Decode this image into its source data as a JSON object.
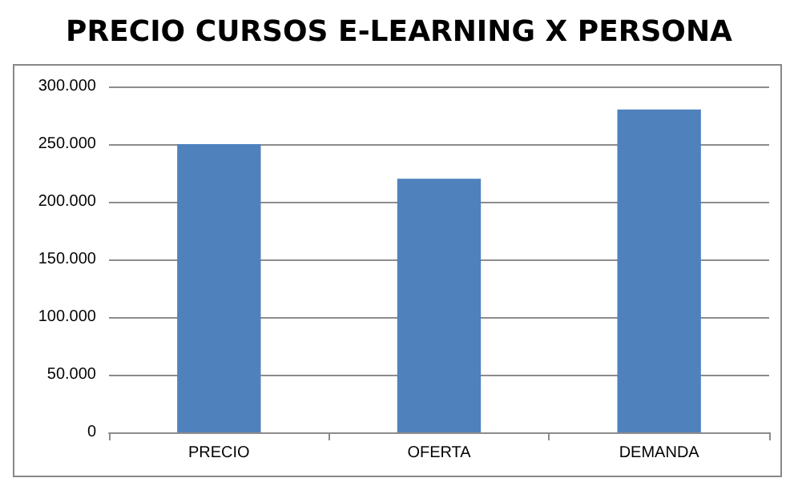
{
  "chart_data": {
    "type": "bar",
    "title": "PRECIO CURSOS E-LEARNING X PERSONA",
    "categories": [
      "PRECIO",
      "OFERTA",
      "DEMANDA"
    ],
    "values": [
      250000,
      220000,
      280000
    ],
    "color": "#4f81bd",
    "ylim": [
      0,
      300000
    ],
    "yticks": [
      {
        "value": 0,
        "label": "0"
      },
      {
        "value": 50000,
        "label": "50.000"
      },
      {
        "value": 100000,
        "label": "100.000"
      },
      {
        "value": 150000,
        "label": "150.000"
      },
      {
        "value": 200000,
        "label": "200.000"
      },
      {
        "value": 250000,
        "label": "250.000"
      },
      {
        "value": 300000,
        "label": "300.000"
      }
    ],
    "grid": true
  }
}
